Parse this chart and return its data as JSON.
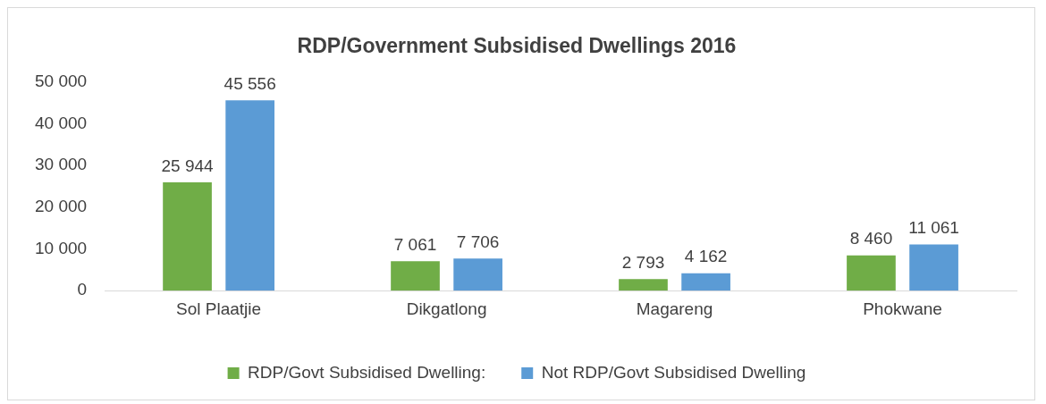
{
  "chart_data": {
    "type": "bar",
    "title": "RDP/Government Subsidised Dwellings 2016",
    "categories": [
      "Sol Plaatjie",
      "Dikgatlong",
      "Magareng",
      "Phokwane"
    ],
    "series": [
      {
        "name": "RDP/Govt Subsidised Dwelling:",
        "color": "#70ad47",
        "values": [
          25944,
          7061,
          2793,
          8460
        ],
        "value_labels": [
          "25 944",
          "7 061",
          "2 793",
          "8 460"
        ]
      },
      {
        "name": "Not RDP/Govt Subsidised Dwelling",
        "color": "#5b9bd5",
        "values": [
          45556,
          7706,
          4162,
          11061
        ],
        "value_labels": [
          "45 556",
          "7 706",
          "4 162",
          "11 061"
        ]
      }
    ],
    "ylim": [
      0,
      50000
    ],
    "yticks": [
      {
        "value": 0,
        "label": "0"
      },
      {
        "value": 10000,
        "label": "10 000"
      },
      {
        "value": 20000,
        "label": "20 000"
      },
      {
        "value": 30000,
        "label": "30 000"
      },
      {
        "value": 40000,
        "label": "40 000"
      },
      {
        "value": 50000,
        "label": "50 000"
      }
    ],
    "grid": false,
    "legend": "bottom"
  }
}
